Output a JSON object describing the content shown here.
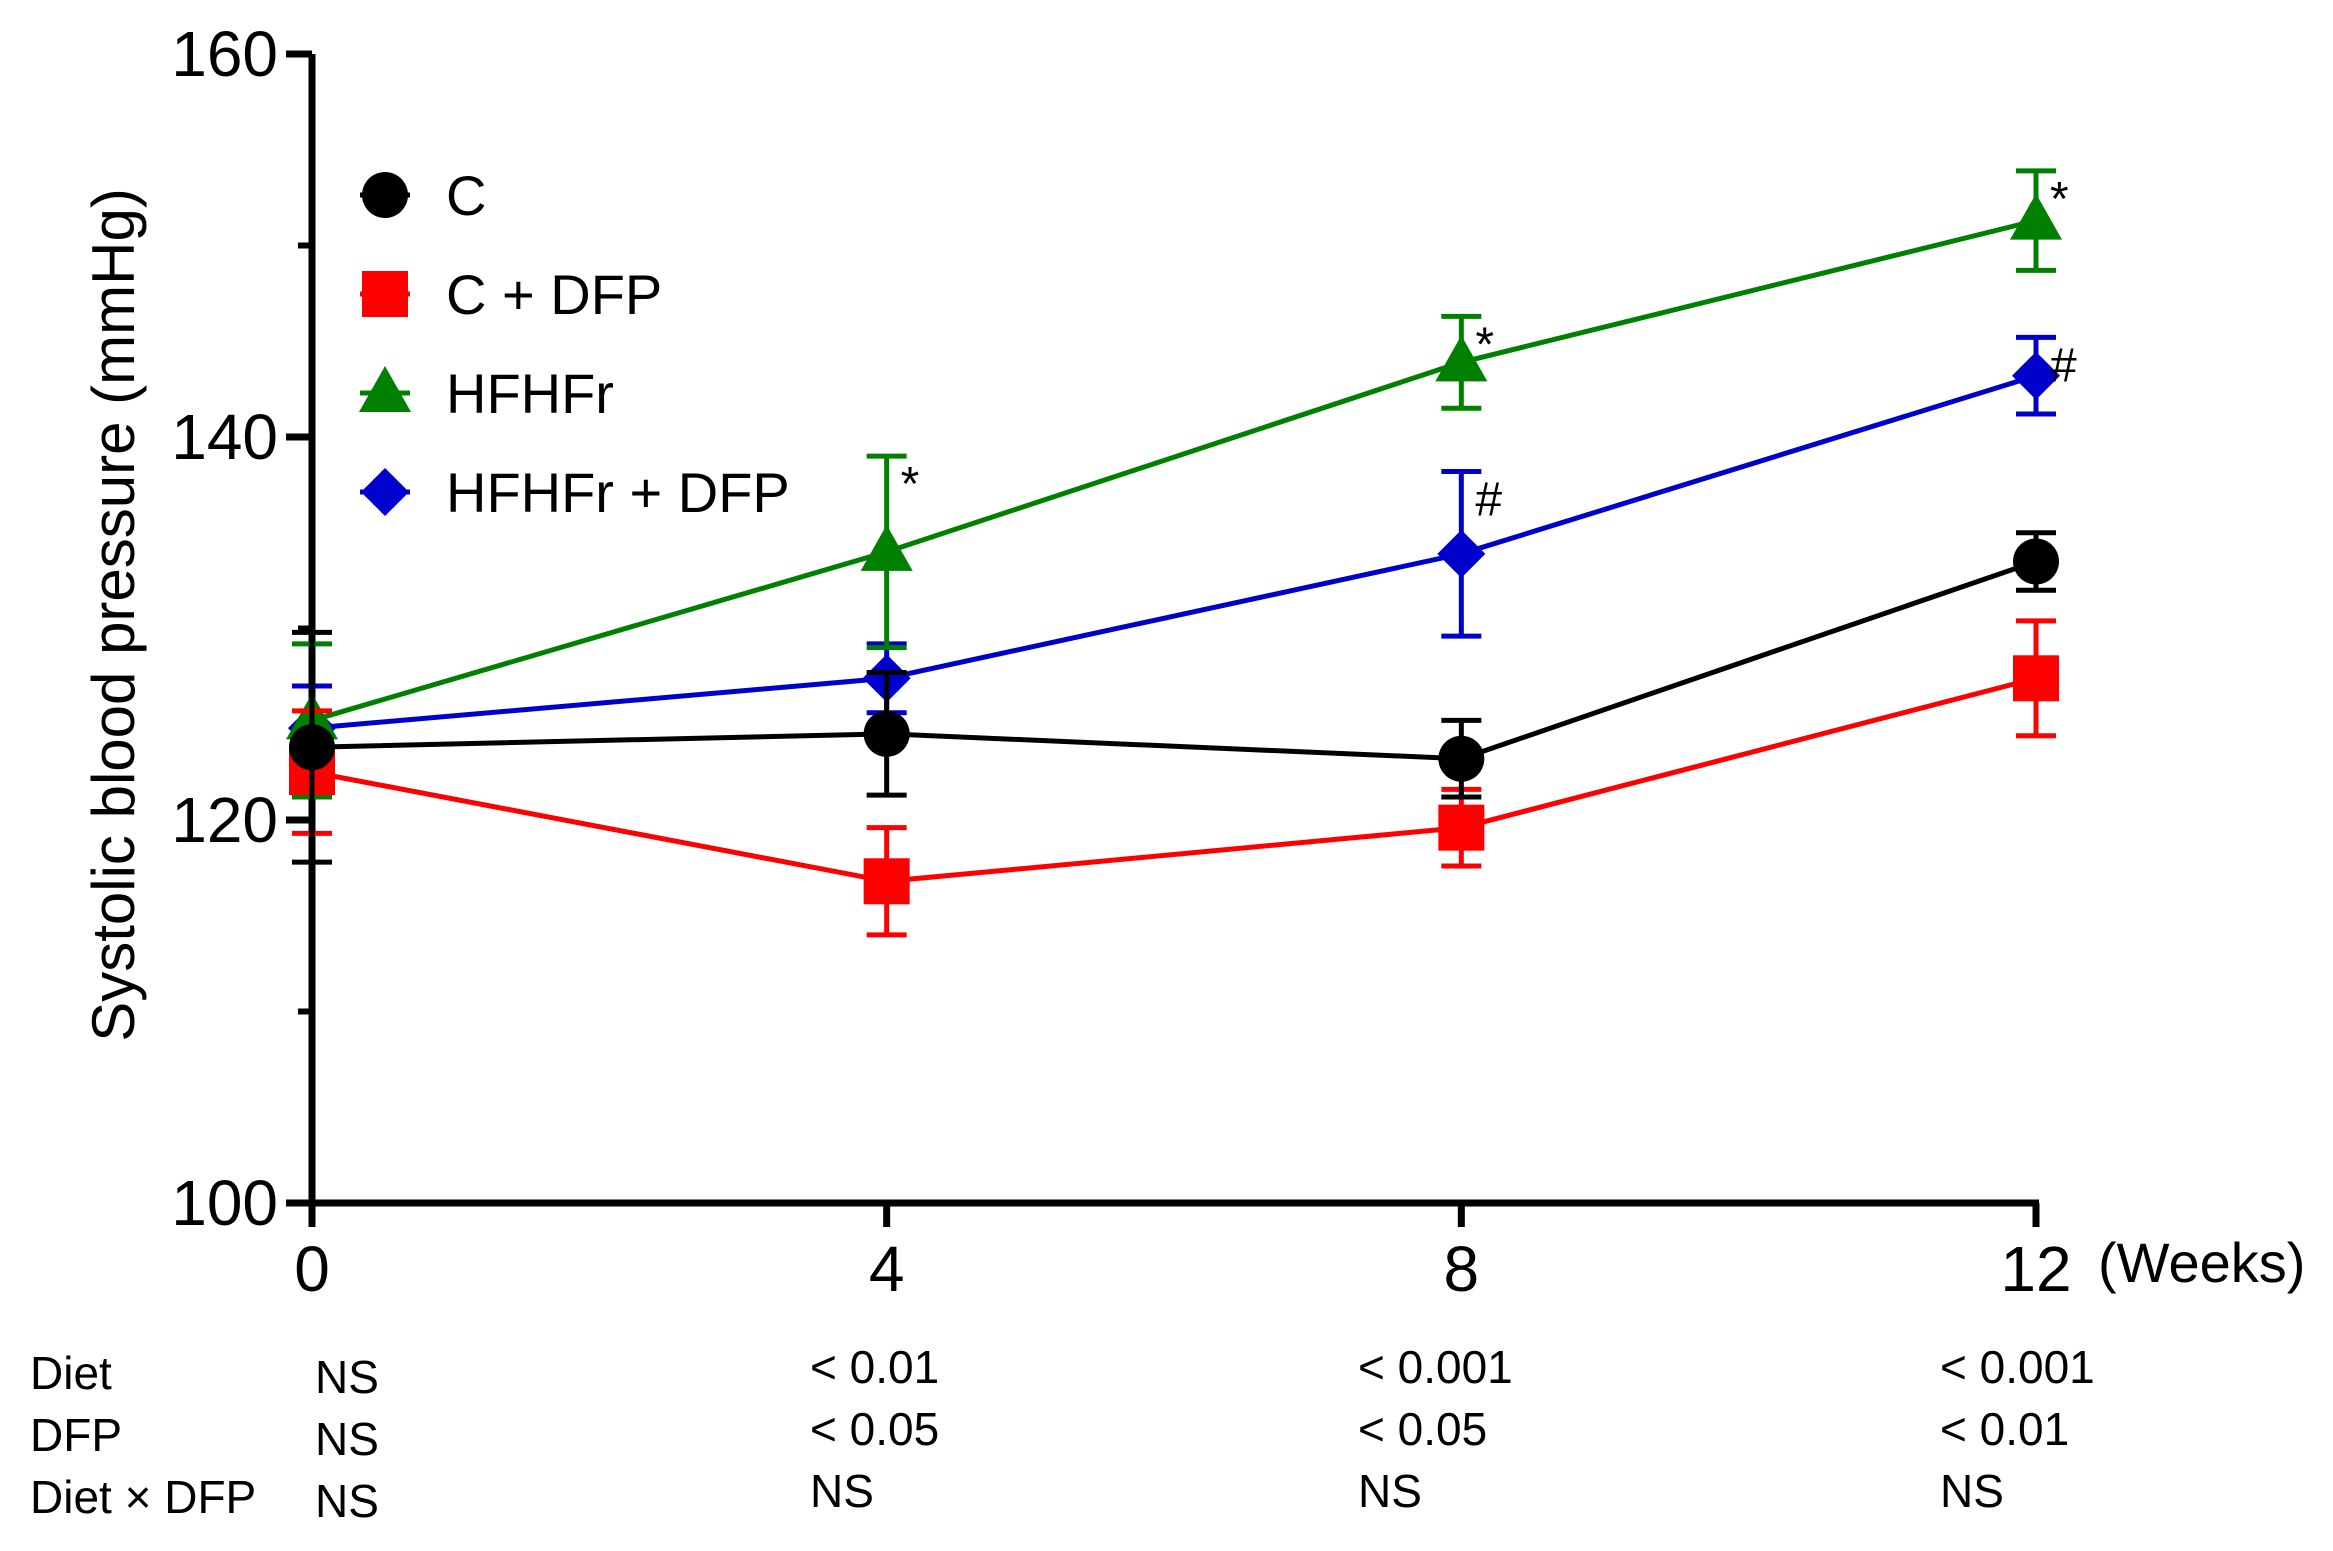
{
  "chart_data": {
    "type": "line",
    "title": "",
    "xlabel": "(Weeks)",
    "ylabel": "Systolic blood pressure (mmHg)",
    "x": [
      0,
      4,
      8,
      12
    ],
    "x_tick_labels": [
      "0",
      "4",
      "8",
      "12"
    ],
    "xlim": [
      0,
      12
    ],
    "ylim": [
      100,
      160
    ],
    "y_ticks": [
      100,
      120,
      140,
      160
    ],
    "y_tick_labels": [
      "100",
      "120",
      "140",
      "160"
    ],
    "y_minor_ticks": [
      110,
      130,
      150
    ],
    "grid": false,
    "legend_position": "top-left",
    "series": [
      {
        "name": "C",
        "marker": "circle",
        "color": "#000000",
        "values": [
          123.8,
          124.5,
          123.2,
          133.5
        ],
        "errors": [
          6.0,
          3.2,
          2.0,
          1.5
        ],
        "annotations": [
          "",
          "",
          "",
          ""
        ]
      },
      {
        "name": "C + DFP",
        "marker": "square",
        "color": "#ff0000",
        "values": [
          122.5,
          116.8,
          119.6,
          127.4
        ],
        "errors": [
          3.2,
          2.8,
          2.0,
          3.0
        ],
        "annotations": [
          "",
          "",
          "",
          ""
        ]
      },
      {
        "name": "HFHFr",
        "marker": "triangle",
        "color": "#008000",
        "values": [
          125.2,
          134.0,
          143.9,
          151.3
        ],
        "errors": [
          4.0,
          5.0,
          2.4,
          2.6
        ],
        "annotations": [
          "",
          "*",
          "*",
          "*"
        ]
      },
      {
        "name": "HFHFr + DFP",
        "marker": "diamond",
        "color": "#0000cc",
        "values": [
          124.8,
          127.4,
          133.9,
          143.2
        ],
        "errors": [
          2.2,
          1.8,
          4.3,
          2.0
        ],
        "annotations": [
          "",
          "",
          "#",
          "#"
        ]
      }
    ],
    "stats_table": {
      "rows": [
        {
          "label": "Diet",
          "values": [
            "NS",
            "< 0.01",
            "< 0.001",
            "< 0.001"
          ]
        },
        {
          "label": "DFP",
          "values": [
            "NS",
            "< 0.05",
            "< 0.05",
            "< 0.01"
          ]
        },
        {
          "label": "Diet × DFP",
          "values": [
            "NS",
            "NS",
            "NS",
            "NS"
          ]
        }
      ]
    }
  }
}
